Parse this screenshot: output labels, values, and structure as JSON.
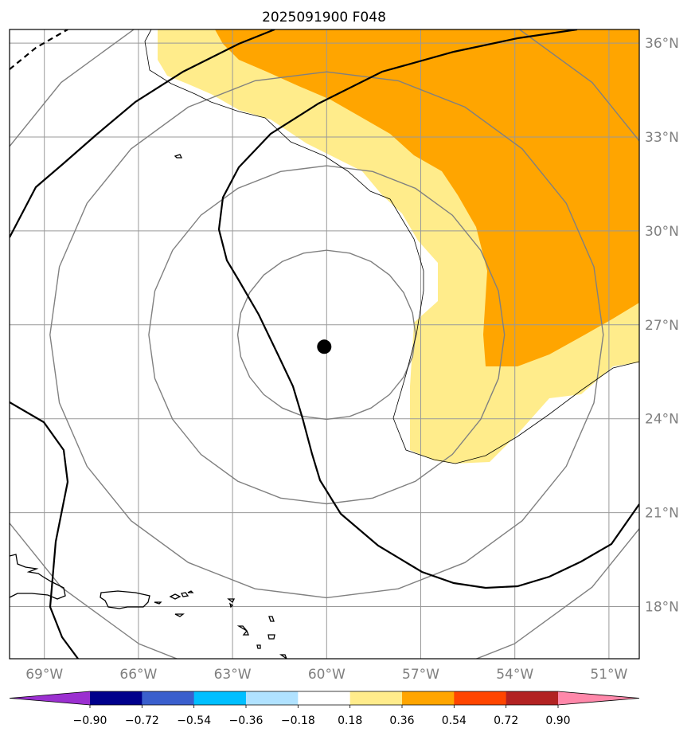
{
  "title": "2025091900 F048",
  "storm_center": {
    "lon": -60.0,
    "lat": 26.3
  },
  "lon_ticks": [
    {
      "value": -69,
      "label": "69°W"
    },
    {
      "value": -66,
      "label": "66°W"
    },
    {
      "value": -63,
      "label": "63°W"
    },
    {
      "value": -60,
      "label": "60°W"
    },
    {
      "value": -57,
      "label": "57°W"
    },
    {
      "value": -54,
      "label": "54°W"
    },
    {
      "value": -51,
      "label": "51°W"
    }
  ],
  "lat_ticks": [
    {
      "value": 18,
      "label": "18°N"
    },
    {
      "value": 21,
      "label": "21°N"
    },
    {
      "value": 24,
      "label": "24°N"
    },
    {
      "value": 27,
      "label": "27°N"
    },
    {
      "value": 30,
      "label": "30°N"
    },
    {
      "value": 33,
      "label": "33°N"
    },
    {
      "value": 36,
      "label": "36°N"
    }
  ],
  "range_rings_deg": [
    2.7,
    5.4,
    8.4,
    11.4
  ],
  "colorbar": {
    "colors": [
      "#9b30d0",
      "#00008b",
      "#3a5fcd",
      "#00bfff",
      "#b0e2ff",
      "#ffffff",
      "#ffec8b",
      "#ffa500",
      "#ff4500",
      "#b22222",
      "#ff88aa"
    ],
    "labels": [
      "−0.90",
      "−0.72",
      "−0.54",
      "−0.36",
      "−0.18",
      "0.18",
      "0.36",
      "0.54",
      "0.72",
      "0.90"
    ]
  },
  "colors": {
    "light_yellow": "#ffec8b",
    "orange": "#ffa500",
    "grid": "#999999",
    "rings": "#808080",
    "tick_text": "#7f7f7f"
  }
}
